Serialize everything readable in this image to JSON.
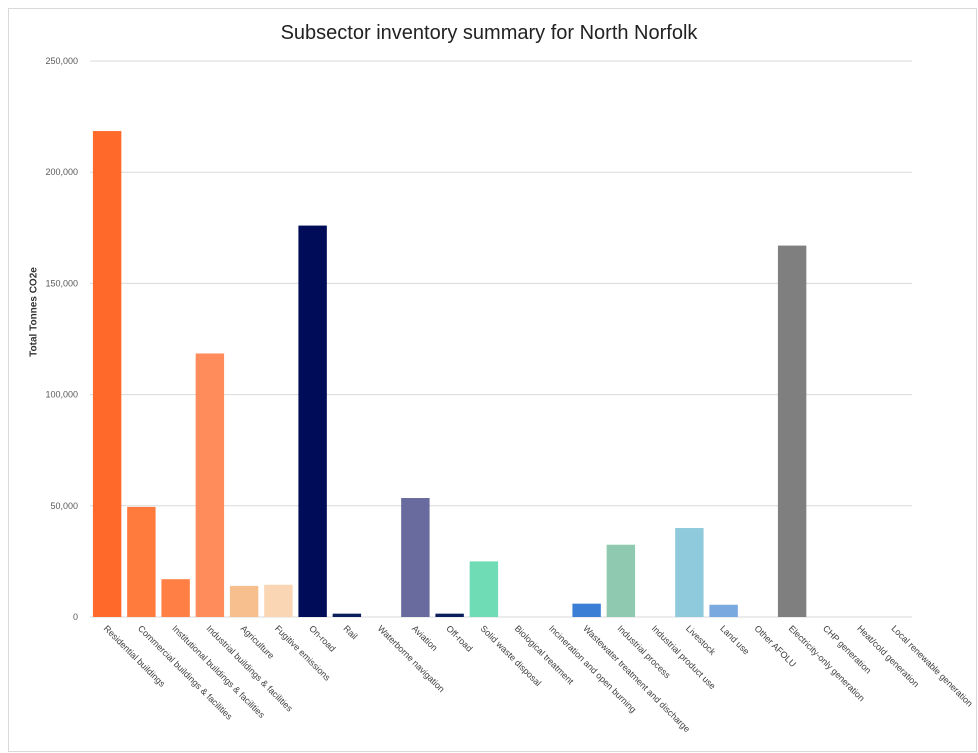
{
  "chart_data": {
    "type": "bar",
    "title": "Subsector inventory summary for North Norfolk",
    "xlabel": "",
    "ylabel": "Total Tonnes CO2e",
    "ylim": [
      0,
      250000
    ],
    "yticks": [
      0,
      50000,
      100000,
      150000,
      200000,
      250000
    ],
    "ytick_labels": [
      "0",
      "50,000",
      "100,000",
      "150,000",
      "200,000",
      "250,000"
    ],
    "grid": true,
    "categories": [
      "Residential buildings",
      "Commercial buildings & facilities",
      "Institutional buildings & facilities",
      "Industrial buildings & facilities",
      "Agriculture",
      "Fugitive emissions",
      "On-road",
      "Rail",
      "Waterborne navigation",
      "Aviation",
      "Off-road",
      "Solid waste disposal",
      "Biological treatment",
      "Incineration and open burning",
      "Wastewater treatment and discharge",
      "Industrial process",
      "Industrial product use",
      "Livestock",
      "Land use",
      "Other AFOLU",
      "Electricity-only generation",
      "CHP generation",
      "Heat/cold generation",
      "Local renewable generation"
    ],
    "values": [
      218500,
      49500,
      17000,
      118500,
      14000,
      14500,
      176000,
      1500,
      0,
      53500,
      1500,
      25000,
      0,
      0,
      6000,
      32500,
      0,
      40000,
      5500,
      0,
      167000,
      0,
      0,
      0
    ],
    "colors": [
      "#ff6a2b",
      "#ff7a3d",
      "#ff7f45",
      "#ff8c5a",
      "#f7bf8d",
      "#fbd6b4",
      "#000c57",
      "#0a1f5c",
      "#ffffff",
      "#696a9e",
      "#0a1f5c",
      "#6fdcb6",
      "#ffffff",
      "#ffffff",
      "#3a7fd5",
      "#8ec9b0",
      "#ffffff",
      "#8fc9dc",
      "#7aa9e0",
      "#ffffff",
      "#7f7f7f",
      "#ffffff",
      "#ffffff",
      "#ffffff"
    ]
  }
}
